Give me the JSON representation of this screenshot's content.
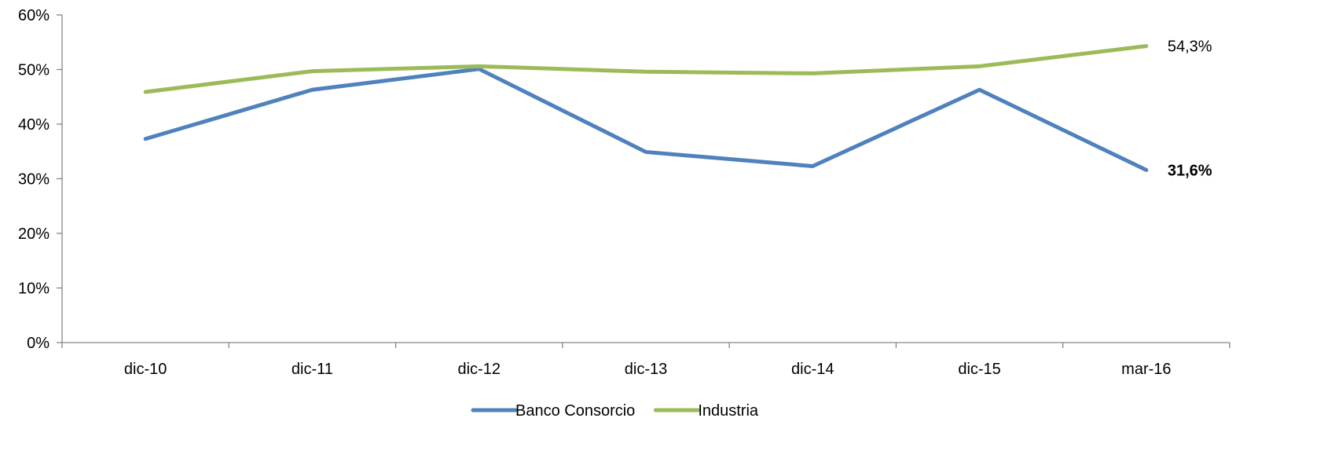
{
  "chart_data": {
    "type": "line",
    "categories": [
      "dic-10",
      "dic-11",
      "dic-12",
      "dic-13",
      "dic-14",
      "dic-15",
      "mar-16"
    ],
    "ylim": [
      0,
      60
    ],
    "yticks": [
      0,
      10,
      20,
      30,
      40,
      50,
      60
    ],
    "ytick_labels": [
      "0%",
      "10%",
      "20%",
      "30%",
      "40%",
      "50%",
      "60%"
    ],
    "grid": false,
    "legend_position": "bottom",
    "series": [
      {
        "name": "Banco Consorcio",
        "color": "#4F81BD",
        "values": [
          37.3,
          46.3,
          50.1,
          34.9,
          32.3,
          46.3,
          31.6
        ],
        "end_label": "31,6%",
        "end_label_bold": true
      },
      {
        "name": "Industria",
        "color": "#9BBB59",
        "values": [
          45.9,
          49.7,
          50.6,
          49.6,
          49.3,
          50.6,
          54.3
        ],
        "end_label": "54,3%",
        "end_label_bold": false
      }
    ]
  }
}
